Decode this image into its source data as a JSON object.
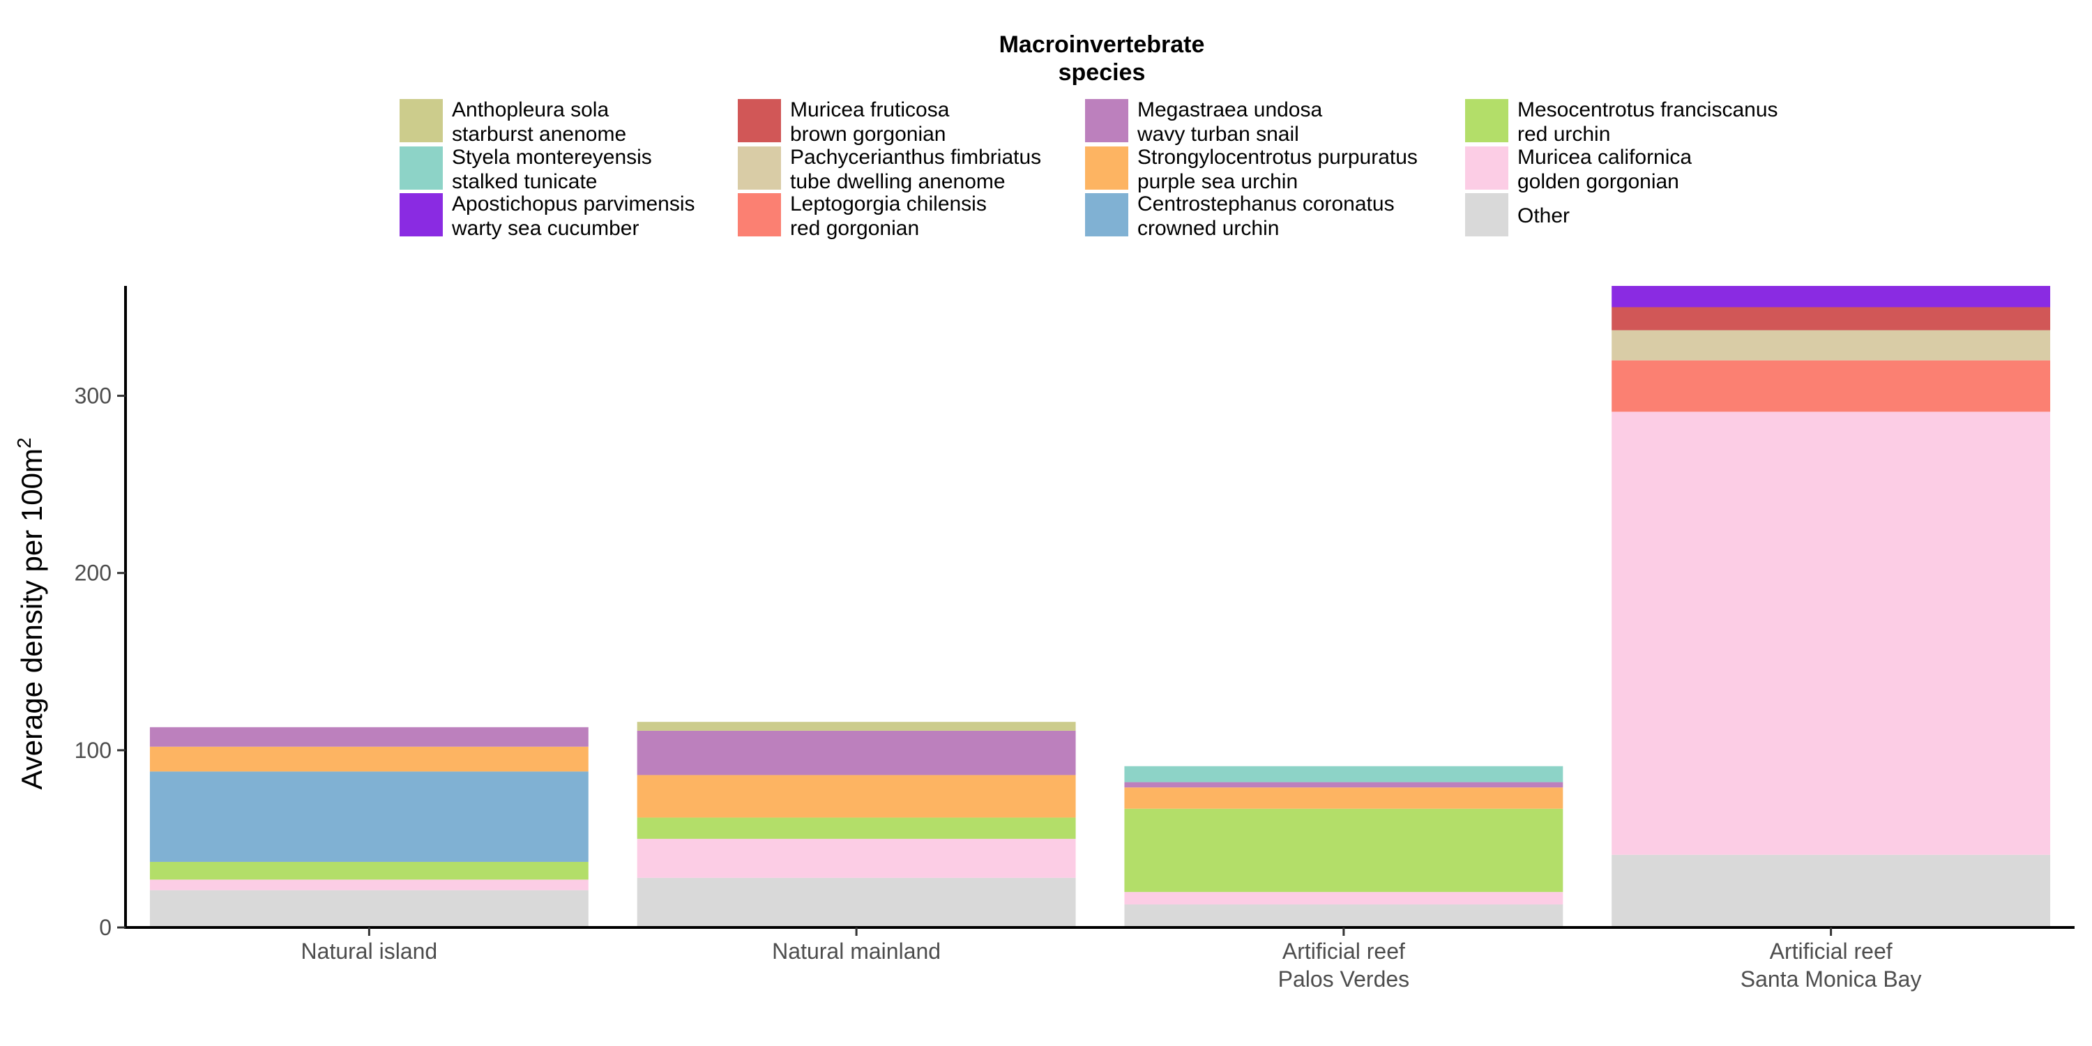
{
  "chart_data": {
    "type": "bar",
    "stacked": true,
    "title": "",
    "xlabel": "",
    "ylabel": "Average density per 100m",
    "ylabel_superscript": "2",
    "ylim": [
      0,
      362
    ],
    "yticks": [
      0,
      100,
      200,
      300
    ],
    "grid": false,
    "legend": {
      "title": [
        "Macroinvertebrate",
        "species"
      ],
      "placement": "top"
    },
    "categories": [
      [
        "Natural island"
      ],
      [
        "Natural mainland"
      ],
      [
        "Artificial reef",
        "Palos Verdes"
      ],
      [
        "Artificial reef",
        "Santa Monica Bay"
      ]
    ],
    "series": [
      {
        "name": [
          "Other"
        ],
        "color": "#d9d9d9",
        "values": [
          21,
          28,
          13,
          41
        ]
      },
      {
        "name": [
          "Muricea californica",
          "golden gorgonian"
        ],
        "color": "#fccde5",
        "values": [
          6,
          22,
          7,
          250
        ]
      },
      {
        "name": [
          "Leptogorgia chilensis",
          "red gorgonian"
        ],
        "color": "#fb8072",
        "values": [
          0,
          0,
          0,
          29
        ]
      },
      {
        "name": [
          "Pachycerianthus fimbriatus",
          "tube dwelling anenome"
        ],
        "color": "#d9cca6",
        "values": [
          0,
          0,
          0,
          17
        ]
      },
      {
        "name": [
          "Muricea fruticosa",
          "brown gorgonian"
        ],
        "color": "#d15757",
        "values": [
          0,
          0,
          0,
          13
        ]
      },
      {
        "name": [
          "Apostichopus parvimensis",
          "warty sea cucumber"
        ],
        "color": "#8a2be2",
        "values": [
          0,
          0,
          0,
          12
        ]
      },
      {
        "name": [
          "Mesocentrotus franciscanus",
          "red urchin"
        ],
        "color": "#b3de69",
        "values": [
          10,
          12,
          47,
          0
        ]
      },
      {
        "name": [
          "Centrostephanus coronatus",
          "crowned urchin"
        ],
        "color": "#80b1d3",
        "values": [
          51,
          0,
          0,
          0
        ]
      },
      {
        "name": [
          "Strongylocentrotus purpuratus",
          "purple sea urchin"
        ],
        "color": "#fdb462",
        "values": [
          14,
          24,
          12,
          0
        ]
      },
      {
        "name": [
          "Megastraea undosa",
          "wavy turban snail"
        ],
        "color": "#bc80bd",
        "values": [
          11,
          25,
          3,
          0
        ]
      },
      {
        "name": [
          "Styela montereyensis",
          "stalked tunicate"
        ],
        "color": "#8dd3c7",
        "values": [
          0,
          0,
          9,
          0
        ]
      },
      {
        "name": [
          "Anthopleura sola",
          "starburst anenome"
        ],
        "color": "#cccc8c",
        "values": [
          0,
          5,
          0,
          0
        ]
      }
    ],
    "legend_columns": [
      [
        [
          "Anthopleura sola",
          "starburst anenome"
        ],
        [
          "Styela montereyensis",
          "stalked tunicate"
        ],
        [
          "Apostichopus parvimensis",
          "warty sea cucumber"
        ]
      ],
      [
        [
          "Muricea fruticosa",
          "brown gorgonian"
        ],
        [
          "Pachycerianthus fimbriatus",
          "tube dwelling anenome"
        ],
        [
          "Leptogorgia chilensis",
          "red gorgonian"
        ]
      ],
      [
        [
          "Megastraea undosa",
          "wavy turban snail"
        ],
        [
          "Strongylocentrotus purpuratus",
          "purple sea urchin"
        ],
        [
          "Centrostephanus coronatus",
          "crowned urchin"
        ]
      ],
      [
        [
          "Mesocentrotus franciscanus",
          "red urchin"
        ],
        [
          "Muricea californica",
          "golden gorgonian"
        ],
        [
          "Other"
        ]
      ]
    ]
  }
}
